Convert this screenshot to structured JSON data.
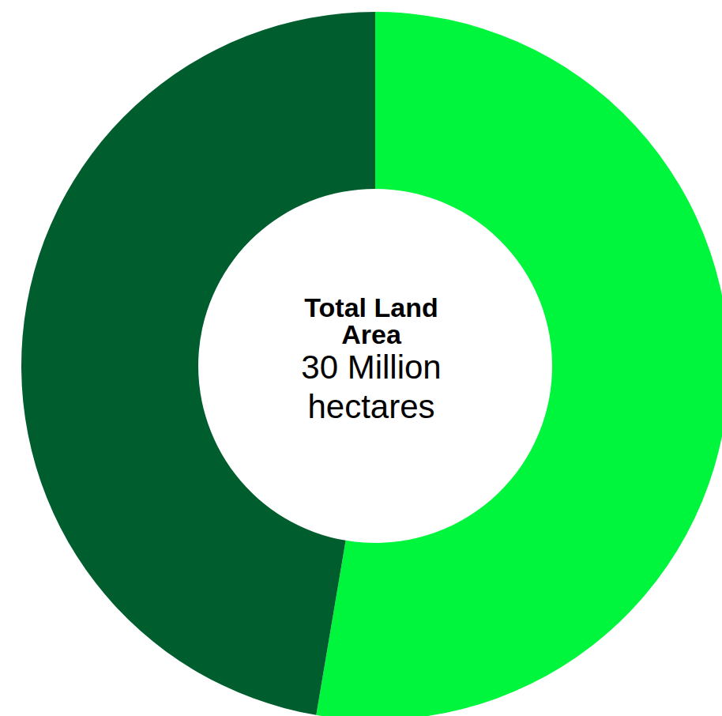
{
  "chart_data": {
    "type": "pie",
    "title": "Total Land Area",
    "subtitle": "30 Million hectares",
    "categories": [
      null,
      null
    ],
    "values": [
      15.8,
      14.2
    ],
    "colors": [
      "#00f53d",
      "#005e2e"
    ],
    "legend": false,
    "data_labels": false
  }
}
